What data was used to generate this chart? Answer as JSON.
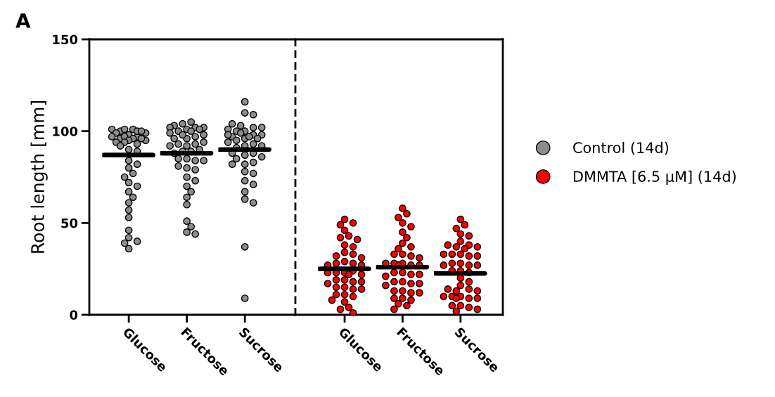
{
  "chart_data": [
    {
      "type": "scatter",
      "title": "A",
      "ylabel": "Root length [mm]",
      "categories": [
        "Glucose",
        "Fructose",
        "Sucrose"
      ],
      "ylim": [
        0,
        150
      ],
      "yticks": [
        0,
        50,
        100,
        150
      ],
      "marker": "circle",
      "series": [
        {
          "name": "Control (14d)",
          "color": "#8c8c8c",
          "x": [
            "Glucose",
            "Glucose",
            "Glucose",
            "Glucose",
            "Glucose",
            "Glucose",
            "Glucose",
            "Glucose",
            "Glucose",
            "Glucose",
            "Glucose",
            "Glucose",
            "Glucose",
            "Glucose",
            "Glucose",
            "Glucose",
            "Glucose",
            "Glucose",
            "Glucose",
            "Glucose",
            "Glucose",
            "Glucose",
            "Glucose",
            "Glucose",
            "Glucose",
            "Glucose",
            "Glucose",
            "Glucose",
            "Glucose",
            "Glucose",
            "Glucose",
            "Glucose",
            "Glucose",
            "Glucose",
            "Glucose",
            "Glucose",
            "Glucose",
            "Glucose",
            "Glucose",
            "Glucose",
            "Fructose",
            "Fructose",
            "Fructose",
            "Fructose",
            "Fructose",
            "Fructose",
            "Fructose",
            "Fructose",
            "Fructose",
            "Fructose",
            "Fructose",
            "Fructose",
            "Fructose",
            "Fructose",
            "Fructose",
            "Fructose",
            "Fructose",
            "Fructose",
            "Fructose",
            "Fructose",
            "Fructose",
            "Fructose",
            "Fructose",
            "Fructose",
            "Fructose",
            "Fructose",
            "Fructose",
            "Fructose",
            "Fructose",
            "Fructose",
            "Fructose",
            "Fructose",
            "Fructose",
            "Fructose",
            "Fructose",
            "Fructose",
            "Fructose",
            "Fructose",
            "Fructose",
            "Fructose",
            "Fructose",
            "Fructose",
            "Sucrose",
            "Sucrose",
            "Sucrose",
            "Sucrose",
            "Sucrose",
            "Sucrose",
            "Sucrose",
            "Sucrose",
            "Sucrose",
            "Sucrose",
            "Sucrose",
            "Sucrose",
            "Sucrose",
            "Sucrose",
            "Sucrose",
            "Sucrose",
            "Sucrose",
            "Sucrose",
            "Sucrose",
            "Sucrose",
            "Sucrose",
            "Sucrose",
            "Sucrose",
            "Sucrose",
            "Sucrose",
            "Sucrose",
            "Sucrose",
            "Sucrose",
            "Sucrose",
            "Sucrose",
            "Sucrose",
            "Sucrose",
            "Sucrose",
            "Sucrose",
            "Sucrose",
            "Sucrose",
            "Sucrose",
            "Sucrose",
            "Sucrose",
            "Sucrose",
            "Sucrose"
          ],
          "values": [
            98,
            97,
            100,
            101,
            99,
            101,
            100,
            101,
            99,
            100,
            97,
            96,
            95,
            96,
            96,
            97,
            95,
            94,
            93,
            94,
            92,
            90,
            89,
            84,
            82,
            80,
            77,
            75,
            72,
            70,
            67,
            64,
            61,
            57,
            53,
            46,
            42,
            40,
            39,
            36,
            101,
            102,
            100,
            102,
            104,
            105,
            103,
            102,
            101,
            100,
            96,
            97,
            98,
            99,
            98,
            96,
            92,
            93,
            94,
            93,
            92,
            89,
            90,
            89,
            88,
            85,
            84,
            85,
            84,
            80,
            79,
            81,
            75,
            73,
            70,
            67,
            64,
            60,
            51,
            48,
            45,
            44,
            116,
            110,
            109,
            100,
            102,
            103,
            104,
            102,
            101,
            100,
            98,
            96,
            97,
            98,
            99,
            98,
            97,
            96,
            95,
            92,
            93,
            94,
            92,
            91,
            87,
            88,
            88,
            86,
            85,
            82,
            83,
            82,
            78,
            77,
            73,
            71,
            67,
            63,
            61,
            37,
            9
          ]
        },
        {
          "type": "box",
          "color": "#000000",
          "boxes": [
            {
              "low": 87,
              "q1": 87,
              "median": 87,
              "q3": 87,
              "high": 87
            },
            {
              "low": 88,
              "q1": 88,
              "median": 88,
              "q3": 88,
              "high": 88
            },
            {
              "low": 90,
              "q1": 90,
              "median": 90,
              "q3": 90,
              "high": 90
            }
          ]
        }
      ]
    },
    {
      "type": "scatter",
      "categories": [
        "Glucose",
        "Fructose",
        "Sucrose"
      ],
      "ylim": [
        0,
        150
      ],
      "yticks": [
        0,
        50,
        100,
        150
      ],
      "tick_labels": "x",
      "legend": "right",
      "marker": "circle",
      "series": [
        {
          "name": "DMMTA [6.5 µM] (14d)",
          "color": "#ff0000",
          "x": [
            "Glucose",
            "Glucose",
            "Glucose",
            "Glucose",
            "Glucose",
            "Glucose",
            "Glucose",
            "Glucose",
            "Glucose",
            "Glucose",
            "Glucose",
            "Glucose",
            "Glucose",
            "Glucose",
            "Glucose",
            "Glucose",
            "Glucose",
            "Glucose",
            "Glucose",
            "Glucose",
            "Glucose",
            "Glucose",
            "Glucose",
            "Glucose",
            "Glucose",
            "Glucose",
            "Glucose",
            "Glucose",
            "Glucose",
            "Glucose",
            "Glucose",
            "Glucose",
            "Glucose",
            "Glucose",
            "Glucose",
            "Glucose",
            "Glucose",
            "Glucose",
            "Glucose",
            "Glucose",
            "Glucose",
            "Fructose",
            "Fructose",
            "Fructose",
            "Fructose",
            "Fructose",
            "Fructose",
            "Fructose",
            "Fructose",
            "Fructose",
            "Fructose",
            "Fructose",
            "Fructose",
            "Fructose",
            "Fructose",
            "Fructose",
            "Fructose",
            "Fructose",
            "Fructose",
            "Fructose",
            "Fructose",
            "Fructose",
            "Fructose",
            "Fructose",
            "Fructose",
            "Fructose",
            "Fructose",
            "Fructose",
            "Fructose",
            "Fructose",
            "Fructose",
            "Fructose",
            "Fructose",
            "Fructose",
            "Fructose",
            "Fructose",
            "Fructose",
            "Fructose",
            "Fructose",
            "Fructose",
            "Fructose",
            "Sucrose",
            "Sucrose",
            "Sucrose",
            "Sucrose",
            "Sucrose",
            "Sucrose",
            "Sucrose",
            "Sucrose",
            "Sucrose",
            "Sucrose",
            "Sucrose",
            "Sucrose",
            "Sucrose",
            "Sucrose",
            "Sucrose",
            "Sucrose",
            "Sucrose",
            "Sucrose",
            "Sucrose",
            "Sucrose",
            "Sucrose",
            "Sucrose",
            "Sucrose",
            "Sucrose",
            "Sucrose",
            "Sucrose",
            "Sucrose",
            "Sucrose",
            "Sucrose",
            "Sucrose",
            "Sucrose",
            "Sucrose",
            "Sucrose",
            "Sucrose",
            "Sucrose",
            "Sucrose",
            "Sucrose",
            "Sucrose",
            "Sucrose",
            "Sucrose",
            "Sucrose",
            "Sucrose"
          ],
          "values": [
            52,
            50,
            49,
            46,
            43,
            42,
            41,
            38,
            37,
            34,
            33,
            32,
            31,
            29,
            28,
            28,
            27,
            27,
            23,
            24,
            23,
            22,
            23,
            22,
            19,
            18,
            19,
            18,
            17,
            15,
            14,
            15,
            14,
            11,
            10,
            11,
            7,
            8,
            4,
            3,
            1,
            58,
            55,
            53,
            50,
            48,
            45,
            42,
            39,
            37,
            36,
            33,
            32,
            33,
            31,
            28,
            27,
            28,
            27,
            28,
            27,
            23,
            22,
            23,
            22,
            21,
            18,
            17,
            18,
            17,
            16,
            13,
            12,
            13,
            12,
            9,
            8,
            9,
            6,
            5,
            3,
            52,
            49,
            47,
            44,
            43,
            40,
            38,
            37,
            38,
            37,
            36,
            33,
            32,
            33,
            32,
            33,
            28,
            27,
            28,
            27,
            27,
            24,
            24,
            23,
            20,
            18,
            16,
            14,
            13,
            14,
            13,
            10,
            9,
            10,
            9,
            10,
            9,
            5,
            4,
            5,
            3,
            2
          ]
        },
        {
          "type": "box",
          "color": "#000000",
          "boxes": [
            {
              "low": 25,
              "q1": 25,
              "median": 25,
              "q3": 25,
              "high": 25
            },
            {
              "low": 26,
              "q1": 26,
              "median": 26,
              "q3": 26,
              "high": 26
            },
            {
              "low": 22.5,
              "q1": 22.5,
              "median": 22.5,
              "q3": 22.5,
              "high": 22.5
            }
          ]
        }
      ]
    }
  ]
}
